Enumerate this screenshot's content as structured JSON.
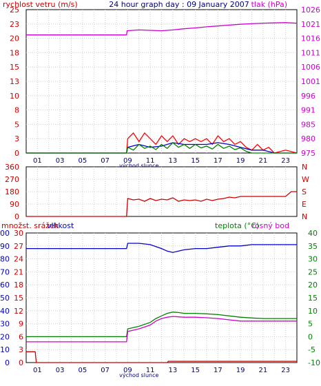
{
  "chart_data": [
    {
      "type": "line",
      "title": "24 hour graph day : 09 January 2007",
      "left_axis_label": "rychlost vetru (m/s)",
      "right_axis_label": "tlak (hPa)",
      "x_ticks": [
        "01",
        "03",
        "05",
        "07",
        "09",
        "11",
        "13",
        "15",
        "17",
        "19",
        "21",
        "23"
      ],
      "x_annotation": "východ slunce",
      "xlim": [
        0,
        24
      ],
      "left_ylim": [
        0,
        25
      ],
      "left_ticks": [
        "0",
        "3",
        "5",
        "8",
        "10",
        "13",
        "15",
        "18",
        "20",
        "23",
        "25"
      ],
      "right_ylim": [
        975,
        1026
      ],
      "right_ticks": [
        "975",
        "980",
        "985",
        "991",
        "996",
        "1001",
        "1006",
        "1011",
        "1016",
        "1021",
        "1026"
      ],
      "grid": true,
      "series": [
        {
          "name": "tlak (hPa)",
          "axis": "right",
          "color": "#cc00cc",
          "x": [
            0,
            8.9,
            8.95,
            10,
            12,
            13,
            14,
            15,
            16,
            17,
            18,
            19,
            20,
            21,
            22,
            23,
            24
          ],
          "y": [
            1017,
            1017,
            1018.5,
            1018.8,
            1018.5,
            1018.8,
            1019.2,
            1019.5,
            1019.9,
            1020.2,
            1020.5,
            1020.8,
            1021.0,
            1021.2,
            1021.3,
            1021.4,
            1021.2
          ]
        },
        {
          "name": "",
          "axis": "left",
          "color": "#ff0000",
          "x": [
            0,
            8.9,
            9,
            9.5,
            10,
            10.5,
            11,
            11.5,
            12,
            12.5,
            13,
            13.5,
            14,
            14.5,
            15,
            15.5,
            16,
            16.5,
            17,
            17.5,
            18,
            18.5,
            19,
            19.5,
            20,
            20.5,
            21,
            21.5,
            22,
            23,
            24
          ],
          "y": [
            0,
            0,
            2.5,
            3.5,
            2.0,
            3.5,
            2.5,
            1.5,
            3.0,
            2.0,
            3.0,
            1.5,
            2.5,
            2.0,
            2.5,
            2.0,
            2.5,
            1.5,
            3.0,
            2.0,
            2.5,
            1.5,
            2.0,
            1.0,
            0.5,
            1.5,
            0.5,
            1.0,
            0,
            0.5,
            0
          ]
        },
        {
          "name": "",
          "axis": "left",
          "color": "#0000cc",
          "x": [
            0,
            8.9,
            9,
            10,
            11,
            12,
            13,
            14,
            15,
            16,
            17,
            18,
            19,
            20,
            21,
            22,
            24
          ],
          "y": [
            0,
            0,
            1.0,
            1.5,
            1.0,
            1.2,
            1.8,
            1.5,
            1.5,
            1.5,
            1.8,
            1.5,
            1.0,
            0.5,
            0.5,
            0,
            0
          ]
        },
        {
          "name": "",
          "axis": "left",
          "color": "#008000",
          "x": [
            0,
            8.9,
            9,
            9.5,
            10,
            10.5,
            11,
            11.5,
            12,
            12.5,
            13,
            13.5,
            14,
            14.5,
            15,
            15.5,
            16,
            16.5,
            17,
            17.5,
            18,
            18.5,
            19,
            19.5,
            20,
            21,
            22,
            24
          ],
          "y": [
            0,
            0,
            1.0,
            0.5,
            1.5,
            0.8,
            1.2,
            0.6,
            1.5,
            0.8,
            1.8,
            1.0,
            1.5,
            0.8,
            1.5,
            0.9,
            1.2,
            0.7,
            1.5,
            0.8,
            1.2,
            0.6,
            0.9,
            0.3,
            0,
            0,
            0,
            0
          ]
        }
      ]
    },
    {
      "type": "line",
      "left_ticks": [
        "0",
        "90",
        "180",
        "270",
        "360"
      ],
      "left_ylim": [
        0,
        360
      ],
      "right_ticks": [
        "N",
        "E",
        "S",
        "W",
        "N"
      ],
      "xlim": [
        0,
        24
      ],
      "grid": true,
      "series": [
        {
          "name": "",
          "axis": "left",
          "color": "#cc0000",
          "x": [
            0,
            8.9,
            9,
            9.5,
            10,
            10.5,
            11,
            11.5,
            12,
            12.5,
            13,
            13.5,
            14,
            14.5,
            15,
            15.5,
            16,
            16.5,
            17,
            17.5,
            18,
            18.5,
            19,
            20,
            21,
            22,
            23,
            23.5,
            24
          ],
          "y": [
            0,
            0,
            130,
            120,
            125,
            110,
            130,
            115,
            125,
            120,
            135,
            110,
            120,
            115,
            120,
            110,
            125,
            115,
            125,
            130,
            140,
            135,
            145,
            145,
            145,
            145,
            145,
            180,
            180
          ]
        }
      ]
    },
    {
      "type": "line",
      "left_labels": [
        "množst. srážek",
        "vlhkost"
      ],
      "right_labels": [
        "teplota (°C)",
        "rosný bod"
      ],
      "x_ticks": [
        "01",
        "03",
        "05",
        "07",
        "09",
        "11",
        "13",
        "15",
        "17",
        "19",
        "21",
        "23"
      ],
      "x_annotation": "východ slunce",
      "xlim": [
        0,
        24
      ],
      "humidity_ylim": [
        0,
        100
      ],
      "humidity_ticks": [
        "0",
        "10",
        "20",
        "30",
        "40",
        "50",
        "60",
        "70",
        "80",
        "90",
        "100"
      ],
      "rain_ticks": [
        "0",
        "3",
        "6",
        "9",
        "12",
        "15",
        "18",
        "21",
        "24",
        "27",
        "30"
      ],
      "rain_ylim": [
        0,
        30
      ],
      "temp_ylim": [
        -10,
        40
      ],
      "temp_ticks": [
        "-10",
        "-5",
        "0",
        "5",
        "10",
        "15",
        "20",
        "25",
        "30",
        "35",
        "40"
      ],
      "grid": true,
      "series": [
        {
          "name": "vlhkost",
          "axis": "humidity",
          "color": "#0000cc",
          "x": [
            0,
            8.9,
            9,
            10,
            11,
            12,
            12.5,
            13,
            13.5,
            14,
            15,
            16,
            17,
            18,
            19,
            20,
            21,
            22,
            23,
            24
          ],
          "y": [
            88,
            88,
            92,
            92,
            91,
            88,
            86,
            85,
            86,
            87,
            88,
            88,
            89,
            90,
            90,
            91,
            91,
            91,
            91,
            91
          ]
        },
        {
          "name": "teplota (°C)",
          "axis": "temp",
          "color": "#008000",
          "x": [
            0,
            8.9,
            9,
            10,
            11,
            11.5,
            12,
            12.5,
            13,
            13.5,
            14,
            15,
            16,
            17,
            18,
            19,
            20,
            21,
            22,
            23,
            24
          ],
          "y": [
            0,
            0,
            3.0,
            4.0,
            5.5,
            7.0,
            8.0,
            9.0,
            9.5,
            9.3,
            9.0,
            9.0,
            8.8,
            8.5,
            8.0,
            7.5,
            7.2,
            7.0,
            7.0,
            7.0,
            7.0
          ]
        },
        {
          "name": "rosný bod",
          "axis": "temp",
          "color": "#cc00cc",
          "x": [
            0,
            8.9,
            9,
            10,
            11,
            11.5,
            12,
            12.5,
            13,
            14,
            15,
            16,
            17,
            18,
            19,
            20,
            21,
            22,
            23,
            24
          ],
          "y": [
            -2,
            -2,
            2.0,
            3.0,
            4.5,
            6.0,
            7.0,
            7.5,
            7.8,
            7.5,
            7.5,
            7.3,
            7.0,
            6.5,
            6.0,
            6.0,
            6.0,
            6.0,
            6.0,
            6.0
          ]
        },
        {
          "name": "množst. srážek",
          "axis": "rain",
          "color": "#cc0000",
          "x": [
            0,
            0.8,
            0.9,
            12.5,
            12.6,
            24
          ],
          "y": [
            2.5,
            2.5,
            0,
            0,
            0.3,
            0.3
          ]
        }
      ]
    }
  ]
}
